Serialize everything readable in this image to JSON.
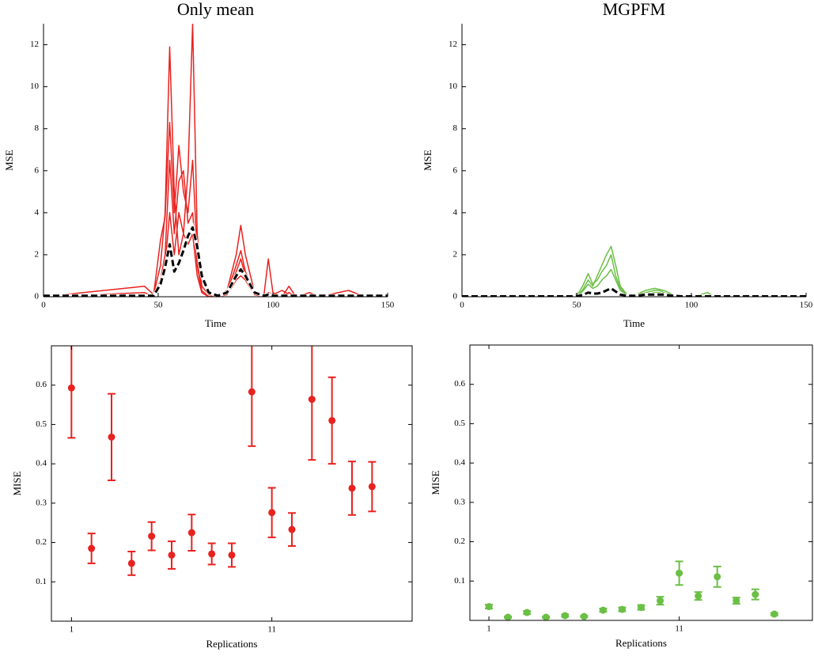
{
  "chart_data": [
    {
      "type": "line",
      "title": "Only mean",
      "xlabel": "Time",
      "ylabel": "MSE",
      "x": [
        0,
        44,
        48,
        51,
        53,
        55,
        57,
        59,
        61,
        63,
        65,
        67,
        69,
        72,
        76,
        80,
        84,
        86,
        88,
        92,
        96,
        98,
        100,
        104,
        107,
        110,
        116,
        120,
        133,
        140,
        150
      ],
      "series": [
        {
          "color": "#e8221f",
          "values": [
            0,
            0.1,
            0.1,
            1.5,
            4,
            11.9,
            5,
            2,
            3,
            6,
            13,
            3,
            0.5,
            0.1,
            0,
            0.3,
            2,
            3.4,
            2,
            0.2,
            0,
            1.8,
            0.2,
            0,
            0.5,
            0,
            0.2,
            0,
            0.3,
            0,
            0
          ]
        },
        {
          "color": "#e8221f",
          "values": [
            0,
            0.5,
            0.1,
            2.7,
            3.8,
            8.3,
            4,
            7.2,
            5,
            4,
            6.5,
            2,
            0.3,
            0,
            0,
            0.2,
            1.5,
            2.2,
            1.2,
            0.1,
            0,
            0.2,
            0.1,
            0.3,
            0.1,
            0,
            0,
            0.1,
            0,
            0,
            0
          ]
        },
        {
          "color": "#e8221f",
          "values": [
            0,
            0.2,
            0,
            0.8,
            2,
            6.5,
            3,
            5.5,
            6,
            3.5,
            4,
            1.5,
            0.2,
            0,
            0,
            0.1,
            1.2,
            1.8,
            1,
            0.2,
            0,
            0.1,
            0,
            0.1,
            0,
            0,
            0,
            0,
            0,
            0,
            0
          ]
        },
        {
          "color": "#e8221f",
          "values": [
            0,
            0,
            0,
            0.5,
            1.5,
            4,
            2,
            4,
            3,
            2.5,
            3,
            1,
            0.2,
            0,
            0,
            0.1,
            0.8,
            1,
            0.8,
            0.1,
            0,
            0,
            0,
            0,
            0.2,
            0,
            0,
            0,
            0,
            0,
            0
          ]
        },
        {
          "color": "#000000",
          "dash": true,
          "values": [
            0.05,
            0.05,
            0.05,
            0.6,
            1.4,
            2.5,
            1.2,
            1.6,
            2.2,
            2.9,
            3.3,
            2.4,
            1,
            0.2,
            0.05,
            0.2,
            1,
            1.3,
            1,
            0.2,
            0.05,
            0.1,
            0.05,
            0.05,
            0.05,
            0.05,
            0.05,
            0.05,
            0.05,
            0.05,
            0.05
          ]
        }
      ],
      "xlim": [
        0,
        150
      ],
      "xticks": [
        0,
        50,
        100,
        150
      ],
      "ylim": [
        0,
        13
      ],
      "yticks": [
        0,
        2,
        4,
        6,
        8,
        10,
        12
      ],
      "box": false
    },
    {
      "type": "line",
      "title": "MGPFM",
      "xlabel": "Time",
      "ylabel": "MSE",
      "x": [
        0,
        44,
        48,
        51,
        53,
        55,
        57,
        59,
        61,
        63,
        65,
        67,
        69,
        72,
        76,
        80,
        84,
        86,
        88,
        92,
        96,
        98,
        100,
        104,
        107,
        110,
        116,
        120,
        133,
        140,
        150
      ],
      "series": [
        {
          "color": "#6abf45",
          "values": [
            0,
            0,
            0,
            0.1,
            0.4,
            0.8,
            0.5,
            1,
            1.5,
            2,
            2.4,
            1.5,
            0.5,
            0.1,
            0.1,
            0.3,
            0.4,
            0.35,
            0.3,
            0.1,
            0,
            0,
            0,
            0.1,
            0.2,
            0,
            0,
            0,
            0,
            0,
            0
          ]
        },
        {
          "color": "#6abf45",
          "values": [
            0,
            0,
            0,
            0.2,
            0.6,
            1.1,
            0.6,
            0.8,
            1.2,
            1.5,
            2,
            1,
            0.4,
            0.1,
            0.1,
            0.2,
            0.3,
            0.3,
            0.2,
            0.05,
            0,
            0,
            0,
            0,
            0,
            0,
            0,
            0,
            0,
            0,
            0
          ]
        },
        {
          "color": "#6abf45",
          "values": [
            0,
            0,
            0,
            0.1,
            0.3,
            0.6,
            0.4,
            0.5,
            0.8,
            1,
            1.3,
            0.8,
            0.3,
            0.1,
            0.1,
            0.1,
            0.2,
            0.2,
            0.1,
            0,
            0,
            0,
            0,
            0,
            0,
            0,
            0,
            0,
            0,
            0,
            0
          ]
        },
        {
          "color": "#000000",
          "dash": true,
          "values": [
            0.02,
            0.02,
            0.02,
            0.05,
            0.1,
            0.2,
            0.15,
            0.15,
            0.2,
            0.3,
            0.4,
            0.25,
            0.1,
            0.05,
            0.05,
            0.1,
            0.1,
            0.1,
            0.1,
            0.05,
            0.02,
            0.02,
            0.02,
            0.02,
            0.02,
            0.02,
            0.02,
            0.02,
            0.02,
            0.02,
            0.02
          ]
        }
      ],
      "xlim": [
        0,
        150
      ],
      "xticks": [
        0,
        50,
        100,
        150
      ],
      "ylim": [
        0,
        13
      ],
      "yticks": [
        0,
        2,
        4,
        6,
        8,
        10,
        12
      ],
      "box": false
    },
    {
      "type": "errorbar",
      "xlabel": "Replications",
      "ylabel": "MISE",
      "color": "#e8221f",
      "x": [
        1,
        2,
        3,
        4,
        5,
        6,
        7,
        8,
        9,
        10,
        11,
        12,
        13,
        14,
        15,
        16
      ],
      "values": [
        0.593,
        0.185,
        0.468,
        0.147,
        0.216,
        0.168,
        0.225,
        0.171,
        0.168,
        0.583,
        0.276,
        0.233,
        0.564,
        0.51,
        0.338,
        0.342
      ],
      "errors": [
        0.127,
        0.038,
        0.11,
        0.03,
        0.036,
        0.035,
        0.046,
        0.027,
        0.03,
        0.138,
        0.063,
        0.042,
        0.154,
        0.11,
        0.068,
        0.063
      ],
      "xlim": [
        0,
        18
      ],
      "xticks": [
        1,
        11
      ],
      "ylim": [
        0,
        0.7
      ],
      "yticks": [
        0.1,
        0.2,
        0.3,
        0.4,
        0.5,
        0.6
      ],
      "box": true
    },
    {
      "type": "errorbar",
      "xlabel": "Replications",
      "ylabel": "MISE",
      "color": "#6abf45",
      "x": [
        1,
        2,
        3,
        4,
        5,
        6,
        7,
        8,
        9,
        10,
        11,
        12,
        13,
        14,
        15,
        16
      ],
      "values": [
        0.035,
        0.008,
        0.02,
        0.008,
        0.012,
        0.01,
        0.026,
        0.028,
        0.033,
        0.05,
        0.12,
        0.062,
        0.111,
        0.05,
        0.066,
        0.016
      ],
      "errors": [
        0.005,
        0.002,
        0.004,
        0.002,
        0.003,
        0.002,
        0.004,
        0.005,
        0.006,
        0.01,
        0.03,
        0.01,
        0.026,
        0.008,
        0.013,
        0.003
      ],
      "xlim": [
        0,
        18
      ],
      "xticks": [
        1,
        11
      ],
      "ylim": [
        0,
        0.7
      ],
      "yticks": [
        0.1,
        0.2,
        0.3,
        0.4,
        0.5,
        0.6
      ],
      "box": true
    }
  ]
}
